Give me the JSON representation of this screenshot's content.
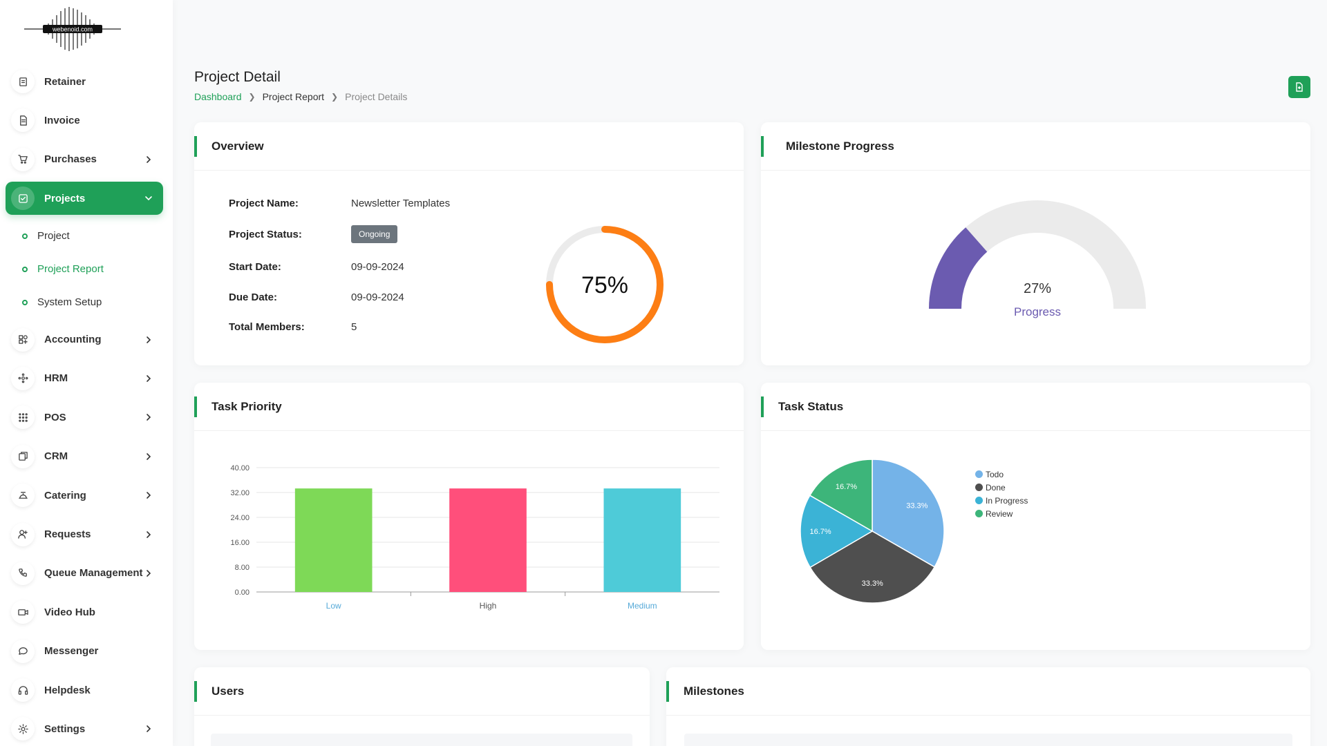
{
  "logo_text": "webenoid.com",
  "sidebar": {
    "items": [
      {
        "label": "Retainer",
        "icon": "retainer-icon",
        "chevron": false
      },
      {
        "label": "Invoice",
        "icon": "invoice-icon",
        "chevron": false
      },
      {
        "label": "Purchases",
        "icon": "cart-icon",
        "chevron": true
      },
      {
        "label": "Projects",
        "icon": "projects-icon",
        "chevron": true,
        "active": true
      }
    ],
    "projects_sub": [
      {
        "label": "Project"
      },
      {
        "label": "Project Report",
        "current": true
      },
      {
        "label": "System Setup"
      }
    ],
    "items_after": [
      {
        "label": "Accounting",
        "icon": "accounting-icon",
        "chevron": true
      },
      {
        "label": "HRM",
        "icon": "hrm-icon",
        "chevron": true
      },
      {
        "label": "POS",
        "icon": "pos-grid-icon",
        "chevron": true
      },
      {
        "label": "CRM",
        "icon": "crm-icon",
        "chevron": true
      },
      {
        "label": "Catering",
        "icon": "catering-icon",
        "chevron": true
      },
      {
        "label": "Requests",
        "icon": "user-plus-icon",
        "chevron": true
      },
      {
        "label": "Queue Management",
        "icon": "phone-icon",
        "chevron": true
      },
      {
        "label": "Video Hub",
        "icon": "video-icon",
        "chevron": false
      },
      {
        "label": "Messenger",
        "icon": "chat-icon",
        "chevron": false
      },
      {
        "label": "Helpdesk",
        "icon": "headset-icon",
        "chevron": false
      },
      {
        "label": "Settings",
        "icon": "gear-icon",
        "chevron": true
      }
    ]
  },
  "header": {
    "title": "Project Detail",
    "breadcrumb": [
      "Dashboard",
      "Project Report",
      "Project Details"
    ]
  },
  "overview": {
    "title": "Overview",
    "rows": [
      {
        "label": "Project Name:",
        "value": "Newsletter Templates"
      },
      {
        "label": "Project Status:",
        "value": "Ongoing"
      },
      {
        "label": "Start Date:",
        "value": "09-09-2024"
      },
      {
        "label": "Due Date:",
        "value": "09-09-2024"
      },
      {
        "label": "Total Members:",
        "value": "5"
      }
    ],
    "progress_label": "75%",
    "progress_value": 75,
    "progress_color": "#fd7e14"
  },
  "milestone": {
    "title": "Milestone Progress",
    "value_label": "27%",
    "value": 27,
    "caption": "Progress",
    "color": "#6b5bb0"
  },
  "task_priority": {
    "title": "Task Priority",
    "chart_data": {
      "type": "bar",
      "categories": [
        "Low",
        "High",
        "Medium"
      ],
      "values": [
        33.3,
        33.3,
        33.3
      ],
      "colors": [
        "#7ed957",
        "#ff4f7b",
        "#4ecbd8"
      ],
      "yticks": [
        "0.00",
        "8.00",
        "16.00",
        "24.00",
        "32.00",
        "40.00"
      ],
      "ylim": [
        0,
        40
      ]
    }
  },
  "task_status": {
    "title": "Task Status",
    "chart_data": {
      "type": "pie",
      "labels": [
        "Todo",
        "Done",
        "In Progress",
        "Review"
      ],
      "values": [
        33.3,
        33.3,
        16.7,
        16.7
      ],
      "value_labels": [
        "33.3%",
        "33.3%",
        "16.7%",
        "16.7%"
      ],
      "colors": [
        "#74b3e8",
        "#4f4f4f",
        "#3bb3d6",
        "#3db57a"
      ]
    }
  },
  "users": {
    "title": "Users"
  },
  "milestones": {
    "title": "Milestones"
  }
}
